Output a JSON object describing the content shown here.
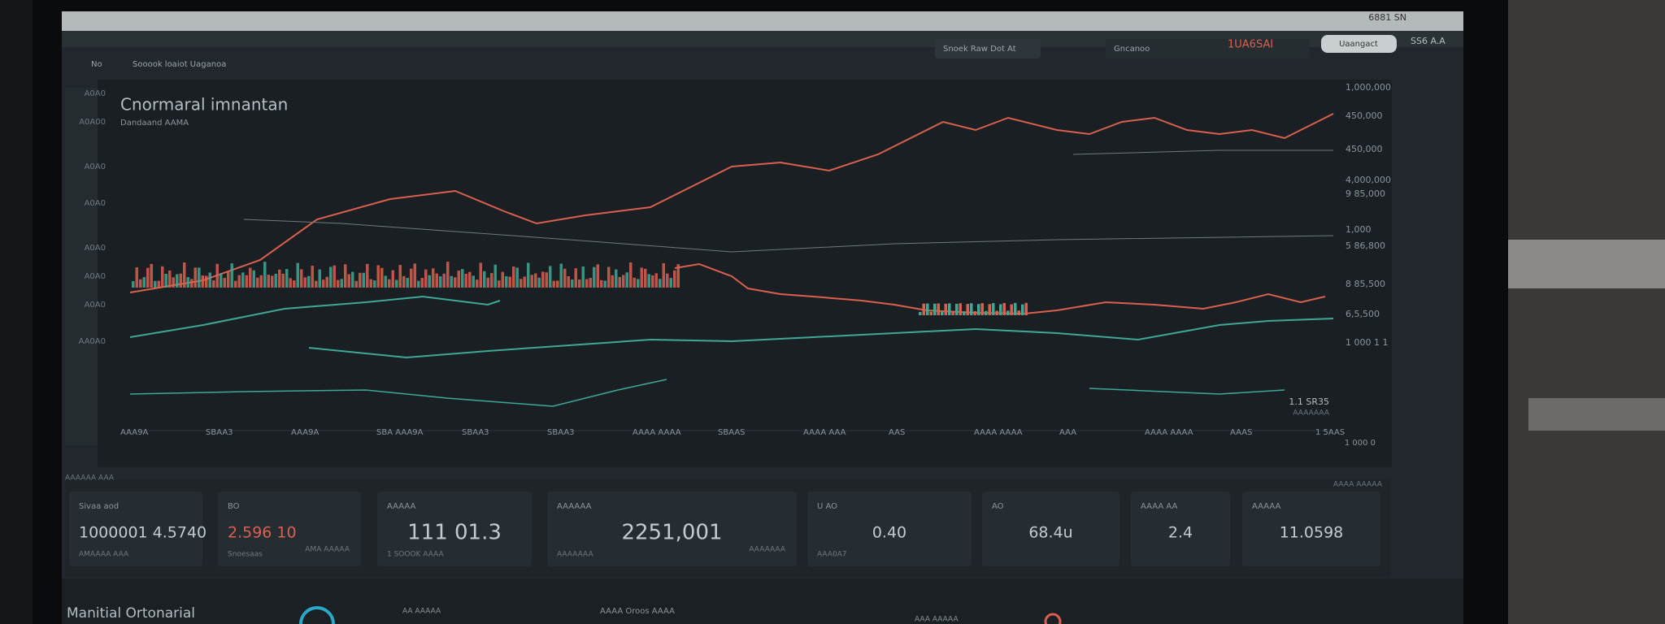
{
  "top_bar": {
    "clock": "6881 SN"
  },
  "header": {
    "search": "Snoek Raw Dot At",
    "account": "Gncanoo",
    "price": "1UA6SAI",
    "button": "Uaangact",
    "status": "SS6 A.A"
  },
  "nav": {
    "home": "No",
    "breadcrumb": "Sooook loaiot Uaganoa"
  },
  "chart": {
    "title": "Cnormaral imnantan",
    "subtitle": "Dandaand AAMA",
    "left_labels": [
      "A0A0",
      "A0A00",
      "A0A0",
      "A0A0",
      "A0A0",
      "A0A0",
      "A0A0",
      "AA0A0"
    ],
    "right_labels": [
      "1,000,000",
      "450,000",
      "450,000",
      "4,000,000",
      "9 85,000",
      "1,000",
      "5 86,800",
      "8 85,500",
      "6,5,500",
      "1 000 1 1"
    ],
    "x_labels": [
      "AAA9A",
      "SBAA3",
      "AAA9A",
      "SBA AAA9A",
      "SBAA3",
      "SBAA3",
      "AAAA AAAA",
      "SBAAS",
      "AAAA AAA",
      "AAS",
      "AAAA AAAA",
      "AAA",
      "AAAA AAAA",
      "AAAS",
      "1 5AAS"
    ],
    "note": "1.1 SR35",
    "note_sub": "AAAAAAA",
    "corner": "1 000 0"
  },
  "section_label": "AAAAAA AAA",
  "section_label_right": "AAAA AAAAA",
  "cards": [
    {
      "label": "Sivaa aod",
      "value": "1000001 4.5740",
      "sub": "AMAAAA AAA"
    },
    {
      "label": "BO",
      "value": "2.596 10",
      "sub": "Snoesaas",
      "extra": "AMA AAAAA"
    },
    {
      "label": "AAAAA",
      "value": "111 01.3",
      "sub": "1 SOOOK AAAA"
    },
    {
      "label": "AAAAAA",
      "value": "2251,001",
      "sub": "AAAAAAA",
      "extra": "AAAAAAA"
    },
    {
      "label": "U AO",
      "value": "0.40",
      "sub": "AAA0A7"
    },
    {
      "label": "AO",
      "value": "68.4u"
    },
    {
      "label": "AAAA AA",
      "value": "2.4"
    },
    {
      "label": "AAAAA",
      "value": "11.0598"
    }
  ],
  "footer": {
    "title": "Manitial Ortonarial",
    "item1": "AA AAAAA",
    "item2": "AAAA Oroos AAAA",
    "item3": "AAA AAAAA"
  }
}
